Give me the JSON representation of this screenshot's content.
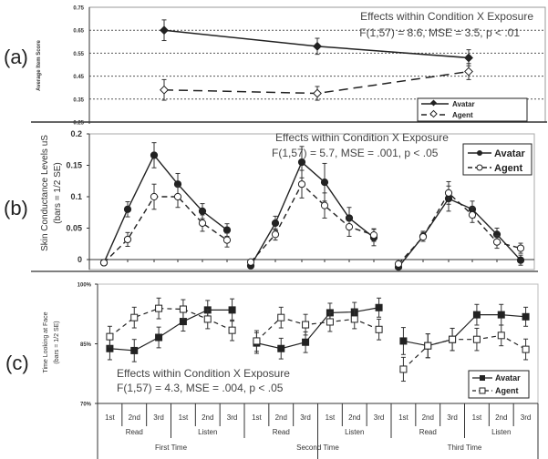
{
  "chart_data": [
    {
      "panel": "(a)",
      "type": "line",
      "ylabel": "Average Item Score",
      "ylim": [
        0.25,
        0.75
      ],
      "yticks": [
        "0.75",
        "0.65",
        "0.55",
        "0.45",
        "0.35",
        "0.25"
      ],
      "ytick_values": [
        0.75,
        0.65,
        0.55,
        0.45,
        0.35,
        0.25
      ],
      "grid": "dotted horizontal",
      "x": [
        1,
        2,
        3
      ],
      "series": [
        {
          "name": "Avatar",
          "values": [
            0.65,
            0.58,
            0.53
          ],
          "errors": [
            0.045,
            0.035,
            0.035
          ],
          "style": "solid",
          "marker": "filled-diamond"
        },
        {
          "name": "Agent",
          "values": [
            0.39,
            0.375,
            0.47
          ],
          "errors": [
            0.045,
            0.03,
            0.035
          ],
          "style": "dashed",
          "marker": "open-diamond"
        }
      ],
      "annotation": [
        "Effects within Condition X Exposure",
        "F(1,57) = 8.6, MSE = 3.5, p < .01"
      ],
      "legend": {
        "position": "bottom-right",
        "entries": [
          "Avatar",
          "Agent"
        ]
      }
    },
    {
      "panel": "(b)",
      "type": "line",
      "ylabel": "Skin Conductance Levels uS",
      "ylabel2": "(bars = 1/2 SE)",
      "ylim": [
        -0.01,
        0.2
      ],
      "yticks": [
        "0.2",
        "0.15",
        "0.1",
        "0.05",
        "0"
      ],
      "ytick_values": [
        0.2,
        0.15,
        0.1,
        0.05,
        0
      ],
      "groups": [
        {
          "series": [
            {
              "name": "Avatar",
              "values": [
                -0.005,
                0.08,
                0.166,
                0.12,
                0.077,
                0.047
              ],
              "errors": [
                0.004,
                0.012,
                0.02,
                0.017,
                0.012,
                0.01
              ]
            },
            {
              "name": "Agent",
              "values": [
                -0.005,
                0.032,
                0.1,
                0.1,
                0.058,
                0.031
              ],
              "errors": [
                0.004,
                0.011,
                0.02,
                0.017,
                0.013,
                0.011
              ]
            }
          ]
        },
        {
          "series": [
            {
              "name": "Avatar",
              "values": [
                -0.01,
                0.058,
                0.155,
                0.123,
                0.066,
                0.035
              ],
              "errors": [
                0.004,
                0.011,
                0.025,
                0.03,
                0.017,
                0.013
              ]
            },
            {
              "name": "Agent",
              "values": [
                -0.004,
                0.04,
                0.12,
                0.086,
                0.052,
                0.039
              ],
              "errors": [
                0.004,
                0.009,
                0.022,
                0.02,
                0.015,
                0.01
              ]
            }
          ]
        },
        {
          "series": [
            {
              "name": "Avatar",
              "values": [
                -0.012,
                0.037,
                0.097,
                0.08,
                0.04,
                -0.001
              ],
              "errors": [
                0.004,
                0.008,
                0.02,
                0.013,
                0.01,
                0.008
              ]
            },
            {
              "name": "Agent",
              "values": [
                -0.007,
                0.036,
                0.106,
                0.071,
                0.028,
                0.018
              ],
              "errors": [
                0.004,
                0.007,
                0.018,
                0.012,
                0.01,
                0.008
              ]
            }
          ]
        }
      ],
      "annotation": [
        "Effects within Condition X Exposure",
        "F(1,57) = 5.7, MSE = .001, p < .05"
      ],
      "legend": {
        "position": "top-right",
        "entries": [
          "Avatar",
          "Agent"
        ]
      }
    },
    {
      "panel": "(c)",
      "type": "line",
      "ylabel": "Time Looking at Face",
      "ylabel2": "(bars = 1/2 SE)",
      "ylim": [
        70,
        100
      ],
      "yticks": [
        "100%",
        "85%",
        "70%"
      ],
      "ytick_values": [
        100,
        85,
        70
      ],
      "categories_level1": [
        "1st",
        "2nd",
        "3rd",
        "1st",
        "2nd",
        "3rd",
        "1st",
        "2nd",
        "3rd",
        "1st",
        "2nd",
        "3rd",
        "1st",
        "2nd",
        "3rd",
        "1st",
        "2nd",
        "3rd"
      ],
      "categories_level2": [
        "Read",
        "Listen",
        "Read",
        "Listen",
        "Read",
        "Listen"
      ],
      "categories_level3": [
        "First Time",
        "Second Time",
        "Third Time"
      ],
      "groups": [
        {
          "series": [
            {
              "name": "Avatar",
              "values": [
                83.8,
                83.3,
                86.6,
                90.6,
                93.5,
                93.5
              ],
              "errors": [
                2.8,
                2.8,
                2.6,
                2.4,
                2.4,
                2.8
              ]
            },
            {
              "name": "Agent",
              "values": [
                86.8,
                91.6,
                93.9,
                93.7,
                91.2,
                88.4
              ],
              "errors": [
                2.6,
                2.6,
                2.6,
                2.4,
                2.4,
                2.6
              ]
            }
          ]
        },
        {
          "series": [
            {
              "name": "Avatar",
              "values": [
                85.2,
                83.8,
                85.4,
                92.8,
                93.0,
                94.1
              ],
              "errors": [
                2.6,
                2.6,
                2.6,
                2.4,
                2.4,
                2.4
              ]
            },
            {
              "name": "Agent",
              "values": [
                85.7,
                91.6,
                89.8,
                90.5,
                91.2,
                88.6
              ],
              "errors": [
                2.6,
                2.6,
                2.6,
                2.4,
                2.4,
                2.6
              ]
            }
          ]
        },
        {
          "series": [
            {
              "name": "Avatar",
              "values": [
                85.7,
                84.5,
                86.1,
                92.3,
                92.3,
                91.8
              ],
              "errors": [
                3.4,
                3.0,
                2.8,
                2.6,
                2.6,
                2.4
              ]
            },
            {
              "name": "Agent",
              "values": [
                78.6,
                84.5,
                86.1,
                86.1,
                87.1,
                83.6
              ],
              "errors": [
                3.0,
                3.0,
                2.8,
                2.8,
                2.6,
                2.6
              ]
            }
          ]
        }
      ],
      "annotation": [
        "Effects within Condition X Exposure",
        "F(1,57) = 4.3, MSE = .004, p < .05"
      ],
      "legend": {
        "position": "bottom-right",
        "entries": [
          "Avatar",
          "Agent"
        ]
      }
    }
  ]
}
